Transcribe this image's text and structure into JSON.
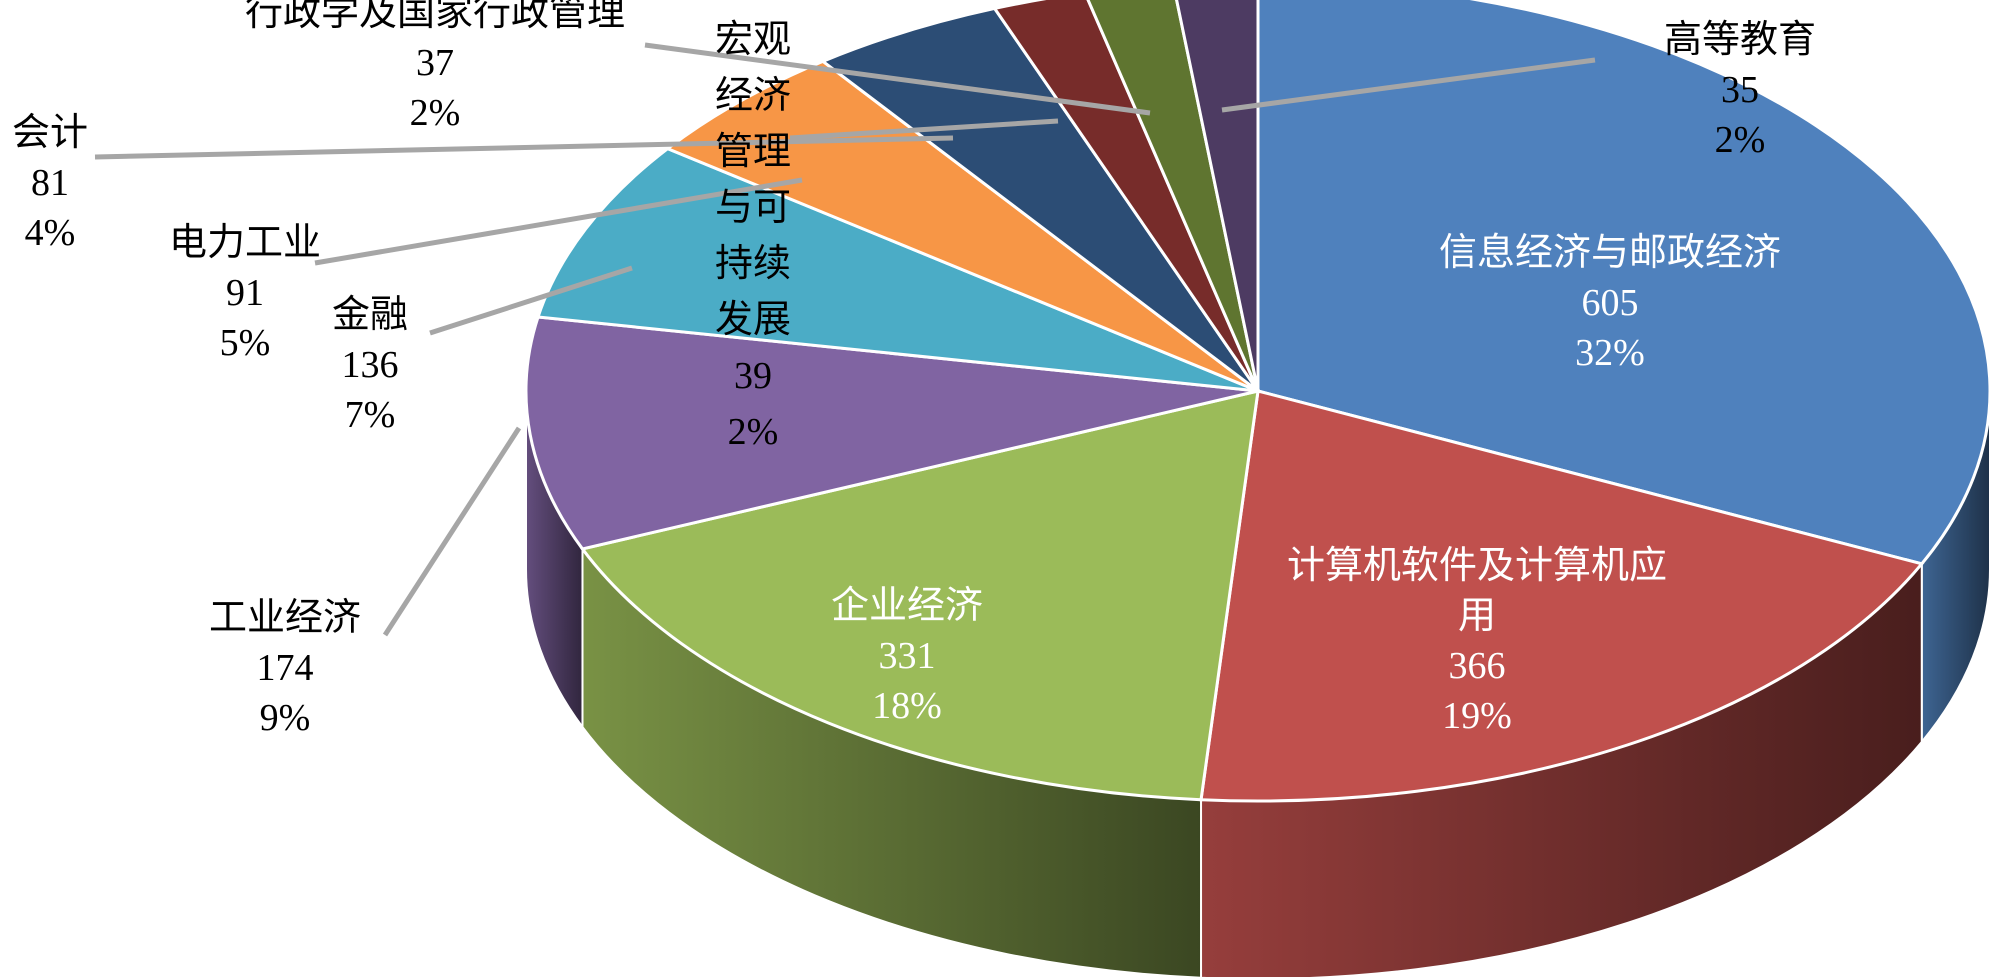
{
  "chart_data": {
    "type": "pie",
    "style": "3d",
    "slices": [
      {
        "label": "信息经济与邮政经济",
        "label_lines": [
          "信息经济与邮政经济"
        ],
        "value": 605,
        "percent": "32%",
        "color": "#4f81bd",
        "label_placement": "inside"
      },
      {
        "label": "计算机软件及计算机应用",
        "label_lines": [
          "计算机软件及计算机应",
          "用"
        ],
        "value": 366,
        "percent": "19%",
        "color": "#c0504d",
        "label_placement": "inside"
      },
      {
        "label": "企业经济",
        "label_lines": [
          "企业经济"
        ],
        "value": 331,
        "percent": "18%",
        "color": "#9bbb59",
        "label_placement": "inside"
      },
      {
        "label": "工业经济",
        "label_lines": [
          "工业经济"
        ],
        "value": 174,
        "percent": "9%",
        "color": "#8064a2",
        "label_placement": "outside"
      },
      {
        "label": "金融",
        "label_lines": [
          "金融"
        ],
        "value": 136,
        "percent": "7%",
        "color": "#4bacc6",
        "label_placement": "outside"
      },
      {
        "label": "电力工业",
        "label_lines": [
          "电力工业"
        ],
        "value": 91,
        "percent": "5%",
        "color": "#f79646",
        "label_placement": "outside"
      },
      {
        "label": "会计",
        "label_lines": [
          "会计"
        ],
        "value": 81,
        "percent": "4%",
        "color": "#2c4d75",
        "label_placement": "outside"
      },
      {
        "label": "宏观经济管理与可持续发展",
        "label_lines": [
          "宏观",
          "经济",
          "管理",
          "与可",
          "持续",
          "发展"
        ],
        "value": 39,
        "percent": "2%",
        "color": "#772c2a",
        "label_placement": "outside"
      },
      {
        "label": "行政学及国家行政管理",
        "label_lines": [
          "行政学及国家行政管理"
        ],
        "value": 37,
        "percent": "2%",
        "color": "#5f7530",
        "label_placement": "outside"
      },
      {
        "label": "高等教育",
        "label_lines": [
          "高等教育"
        ],
        "value": 35,
        "percent": "2%",
        "color": "#4d3b62",
        "label_placement": "outside"
      }
    ],
    "start_angle": "12 o'clock",
    "direction": "clockwise",
    "legend": "none",
    "leader_line_color": "#a6a6a6"
  }
}
